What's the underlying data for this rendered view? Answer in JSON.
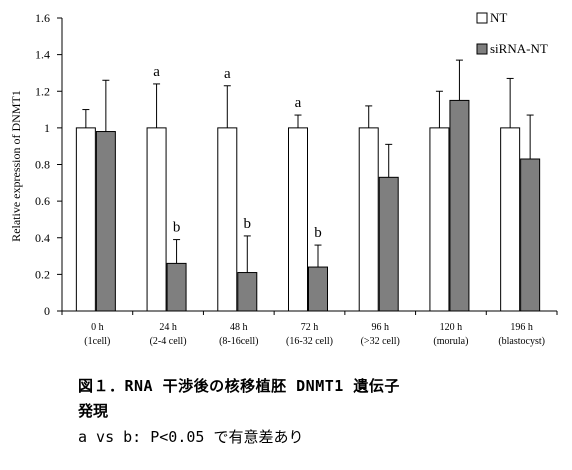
{
  "chart_data": {
    "type": "bar",
    "ylabel": "Relative expression of DNMT1",
    "ylim": [
      0,
      1.6
    ],
    "yticks": [
      "0",
      "0.2",
      "0.4",
      "0.6",
      "0.8",
      "1",
      "1.2",
      "1.4",
      "1.6"
    ],
    "categories": [
      {
        "time": "0 h",
        "stage": "(1cell)"
      },
      {
        "time": "24 h",
        "stage": "(2-4 cell)"
      },
      {
        "time": "48 h",
        "stage": "(8-16cell)"
      },
      {
        "time": "72 h",
        "stage": "(16-32 cell)"
      },
      {
        "time": "96 h",
        "stage": "(>32 cell)"
      },
      {
        "time": "120 h",
        "stage": "(morula)"
      },
      {
        "time": "196 h",
        "stage": "(blastocyst)"
      }
    ],
    "series": [
      {
        "name": "NT",
        "color": "#ffffff",
        "values": [
          1.0,
          1.0,
          1.0,
          1.0,
          1.0,
          1.0,
          1.0
        ],
        "error": [
          0.1,
          0.24,
          0.23,
          0.07,
          0.12,
          0.2,
          0.27
        ],
        "marks": [
          "",
          "a",
          "a",
          "a",
          "",
          "",
          ""
        ]
      },
      {
        "name": "siRNA-NT",
        "color": "#7f7f7f",
        "values": [
          0.98,
          0.26,
          0.21,
          0.24,
          0.73,
          1.15,
          0.83
        ],
        "error": [
          0.28,
          0.13,
          0.2,
          0.12,
          0.18,
          0.22,
          0.24
        ],
        "marks": [
          "",
          "b",
          "b",
          "b",
          "",
          "",
          ""
        ]
      }
    ],
    "legend_position": "top-right"
  },
  "caption": {
    "line1": "図１．RNA 干渉後の核移植胚 DNMT1 遺伝子",
    "line2": "発現",
    "line3": "a vs b: P<0.05 で有意差あり"
  }
}
